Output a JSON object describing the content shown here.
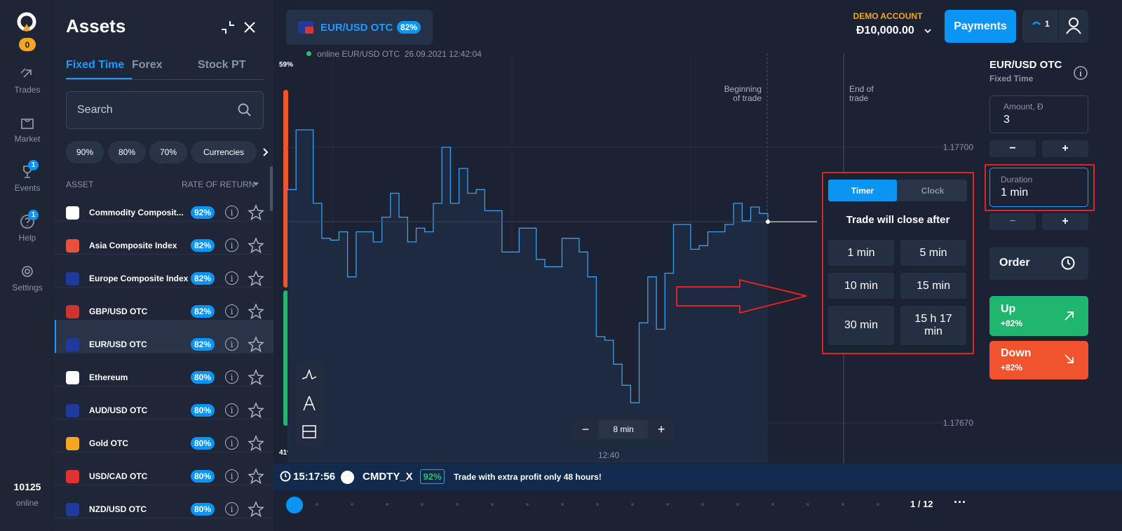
{
  "nav": {
    "badge": "0",
    "items": [
      {
        "label": "Trades"
      },
      {
        "label": "Market"
      },
      {
        "label": "Events",
        "badge": "1"
      },
      {
        "label": "Help",
        "badge": "1"
      },
      {
        "label": "Settings"
      }
    ],
    "online_count": "10125",
    "online_label": "online"
  },
  "assets_panel": {
    "title": "Assets",
    "tabs": [
      "Fixed Time",
      "Forex",
      "Stock PT"
    ],
    "search_placeholder": "Search",
    "filters": [
      "90%",
      "80%",
      "70%",
      "Currencies"
    ],
    "column_asset": "ASSET",
    "column_return": "RATE OF RETURN",
    "rows": [
      {
        "name": "Commodity Composit...",
        "rate": "92%"
      },
      {
        "name": "Asia Composite Index",
        "rate": "82%"
      },
      {
        "name": "Europe Composite Index",
        "rate": "82%"
      },
      {
        "name": "GBP/USD OTC",
        "rate": "82%"
      },
      {
        "name": "EUR/USD OTC",
        "rate": "82%"
      },
      {
        "name": "Ethereum",
        "rate": "80%"
      },
      {
        "name": "AUD/USD OTC",
        "rate": "80%"
      },
      {
        "name": "Gold OTC",
        "rate": "80%"
      },
      {
        "name": "USD/CAD OTC",
        "rate": "80%"
      },
      {
        "name": "NZD/USD OTC",
        "rate": "80%"
      }
    ]
  },
  "chart": {
    "pair": "EUR/USD OTC",
    "pair_rate": "82%",
    "status": "online EUR/USD OTC  26.09.2021 12:42:04",
    "top_pct": "59%",
    "bottom_pct": "41%",
    "begin_label": [
      "Beginning",
      "of trade"
    ],
    "end_label": [
      "End of",
      "trade"
    ],
    "price_ticks": [
      {
        "value": 1.177,
        "label": "1.17700"
      },
      {
        "value": 1.1767,
        "label": "1.17670"
      }
    ],
    "prices": [
      1.176954,
      1.177019,
      1.177019,
      1.176939,
      1.176901,
      1.176899,
      1.176908,
      1.176859,
      1.176908,
      1.176908,
      1.176897,
      1.176924,
      1.17695,
      1.176924,
      1.176897,
      1.176912,
      1.176908,
      1.176939,
      1.177,
      1.176939,
      1.176977,
      1.17695,
      1.176954,
      1.176931,
      1.176931,
      1.176886,
      1.176886,
      1.176912,
      1.176912,
      1.176878,
      1.17687,
      1.17687,
      1.176901,
      1.176901,
      1.176886,
      1.176859,
      1.176794,
      1.17679,
      1.176764,
      1.176741,
      1.176722,
      1.176809,
      1.176859,
      1.176802,
      1.176863,
      1.176916,
      1.176916,
      1.176889,
      1.176893,
      1.176908,
      1.176908,
      1.176916,
      1.176939,
      1.17692,
      1.176935,
      1.176928,
      1.176919
    ],
    "time_label": "12:40",
    "zoom": "8 min"
  },
  "duration_popup": {
    "tabs": [
      "Timer",
      "Clock"
    ],
    "heading": "Trade will close after",
    "options": [
      "1 min",
      "5 min",
      "10 min",
      "15 min",
      "30 min",
      "15 h 17 min"
    ]
  },
  "header": {
    "account_label": "DEMO ACCOUNT",
    "balance": "Đ10,000.00",
    "payments": "Payments",
    "notifications": "1"
  },
  "trade_panel": {
    "pair": "EUR/USD OTC",
    "mode": "Fixed Time",
    "amount_label": "Amount, Đ",
    "amount": "3",
    "duration_label": "Duration",
    "duration": "1 min",
    "order": "Order",
    "up": "Up",
    "up_rate": "+82%",
    "down": "Down",
    "down_rate": "+82%"
  },
  "ticker": {
    "time": "15:17:56",
    "symbol": "CMDTY_X",
    "rate": "92%",
    "message": "Trade with extra profit only 48 hours!",
    "page": "1 / 12"
  }
}
